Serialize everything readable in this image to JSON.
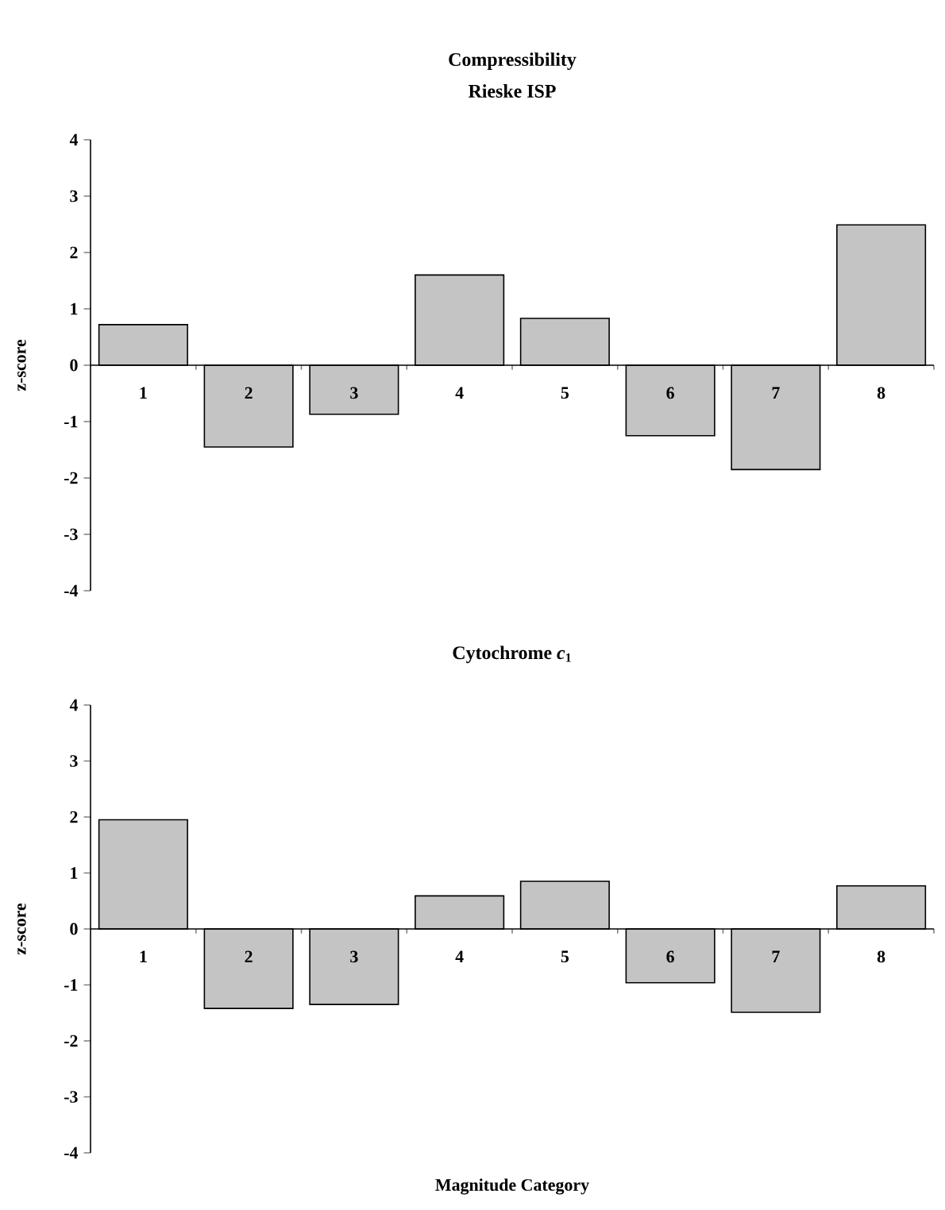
{
  "chart_data": [
    {
      "type": "bar",
      "title": "Compressibility",
      "subtitle": "Rieske ISP",
      "ylabel": "z-score",
      "categories": [
        "1",
        "2",
        "3",
        "4",
        "5",
        "6",
        "7",
        "8"
      ],
      "values": [
        0.72,
        -1.45,
        -0.87,
        1.6,
        0.83,
        -1.25,
        -1.85,
        2.49
      ],
      "color": "#c4c4c4",
      "ylim": [
        -4,
        4
      ],
      "yticks": [
        -4,
        -3,
        -2,
        -1,
        0,
        1,
        2,
        3,
        4
      ]
    },
    {
      "type": "bar",
      "title": "Cytochrome *c*$_{1}$",
      "ylabel": "z-score",
      "xlabel": "Magnitude Category",
      "categories": [
        "1",
        "2",
        "3",
        "4",
        "5",
        "6",
        "7",
        "8"
      ],
      "values": [
        1.95,
        -1.42,
        -1.35,
        0.59,
        0.85,
        -0.96,
        -1.49,
        0.77
      ],
      "color": "#c4c4c4",
      "ylim": [
        -4,
        4
      ],
      "yticks": [
        -4,
        -3,
        -2,
        -1,
        0,
        1,
        2,
        3,
        4
      ]
    }
  ]
}
